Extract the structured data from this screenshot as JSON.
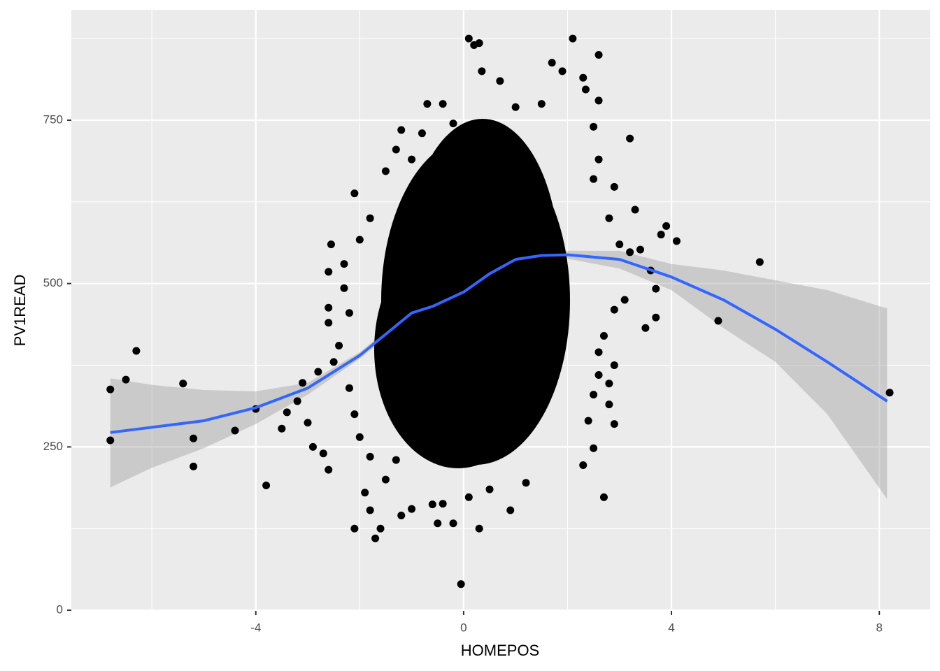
{
  "chart_data": {
    "type": "scatter",
    "x_label": "HOMEPOS",
    "y_label": "PV1READ",
    "xlim": [
      -7.55,
      8.98
    ],
    "ylim": [
      -1,
      919
    ],
    "xticks": [
      -4,
      0,
      4,
      8
    ],
    "yticks": [
      0,
      250,
      500,
      750
    ],
    "xminor": [
      -6,
      -2,
      2,
      6
    ],
    "yminor": [
      125,
      375,
      625,
      875
    ],
    "grid": true,
    "point_color": "#000000",
    "x": [
      -6.8,
      -6.8,
      -6.5,
      -6.3,
      -5.4,
      -5.2,
      -5.2,
      -4.4,
      -4,
      -3.8,
      -3.5,
      -3.4,
      -3.2,
      -3.1,
      -3,
      -2.9,
      -2.8,
      -2.7,
      -2.6,
      -2.6,
      -2.55,
      -2.6,
      -2.6,
      -2.1,
      -2.1,
      -1.9,
      -1.8,
      -1.7,
      -1.6,
      -1.5,
      -1.2,
      -1.0,
      -0.6,
      -0.4,
      -0.5,
      -0.2,
      -0.05,
      0.1,
      0.3,
      0.5,
      0.9,
      1.2,
      0.1,
      0.2,
      0.3,
      0.35,
      0.7,
      1.7,
      1.9,
      2.1,
      2.3,
      2.35,
      2.6,
      2.6,
      2.5,
      3.2,
      2.9,
      3.3,
      3.8,
      3.9,
      4.1,
      4.9,
      5.7,
      8.2,
      3.7,
      3.7,
      3.5,
      3.1,
      2.9,
      2.9,
      2.8,
      2.8,
      2.7,
      2.5,
      2.3,
      -0.7,
      -0.4,
      -0.8,
      -1.2,
      -1.3,
      -1.5,
      -1.8,
      -2.0,
      -2.3,
      -2.3,
      -2.2,
      -2.4,
      -2.5,
      -2.2,
      -2.1,
      -2.0,
      -1.8,
      -1.3,
      2.6,
      2.5,
      2.8,
      3.0,
      3.2,
      3.4,
      3.6,
      2.9,
      2.7,
      2.6,
      2.6,
      2.5,
      2.4,
      1.0,
      1.5,
      -0.2,
      -1.0
    ],
    "y": [
      338,
      260,
      353,
      397,
      347,
      263,
      220,
      275,
      308,
      191,
      278,
      303,
      320,
      348,
      287,
      250,
      365,
      240,
      215,
      518,
      560,
      463,
      440,
      638,
      125,
      180,
      153,
      110,
      125,
      200,
      145,
      155,
      162,
      163,
      133,
      133,
      40,
      173,
      125,
      185,
      153,
      195,
      875,
      865,
      868,
      825,
      810,
      838,
      825,
      875,
      815,
      797,
      850,
      780,
      740,
      722,
      648,
      613,
      575,
      588,
      565,
      443,
      533,
      333,
      492,
      448,
      432,
      475,
      375,
      285,
      315,
      347,
      173,
      248,
      222,
      775,
      775,
      730,
      735,
      705,
      672,
      600,
      567,
      530,
      493,
      455,
      405,
      380,
      340,
      300,
      265,
      235,
      230,
      690,
      660,
      600,
      560,
      548,
      552,
      520,
      460,
      420,
      395,
      360,
      330,
      290,
      770,
      775,
      745,
      690
    ],
    "smooth": {
      "color": "#3366FF",
      "band_color": "#999999",
      "x": [
        -6.8,
        -6,
        -5,
        -4,
        -3,
        -2,
        -1,
        -0.6,
        0,
        0.5,
        1,
        1.5,
        2,
        3,
        4,
        5,
        6,
        7,
        8.15
      ],
      "y": [
        272,
        280,
        290,
        310,
        340,
        390,
        455,
        465,
        487,
        515,
        537,
        543,
        544,
        537,
        510,
        475,
        430,
        380,
        320
      ],
      "ymin": [
        188,
        218,
        248,
        285,
        330,
        385,
        450,
        460,
        483,
        511,
        532,
        538,
        538,
        523,
        490,
        432,
        380,
        300,
        170
      ],
      "ymax": [
        355,
        345,
        337,
        335,
        348,
        395,
        460,
        470,
        491,
        519,
        542,
        548,
        550,
        550,
        530,
        520,
        505,
        490,
        462
      ]
    }
  }
}
